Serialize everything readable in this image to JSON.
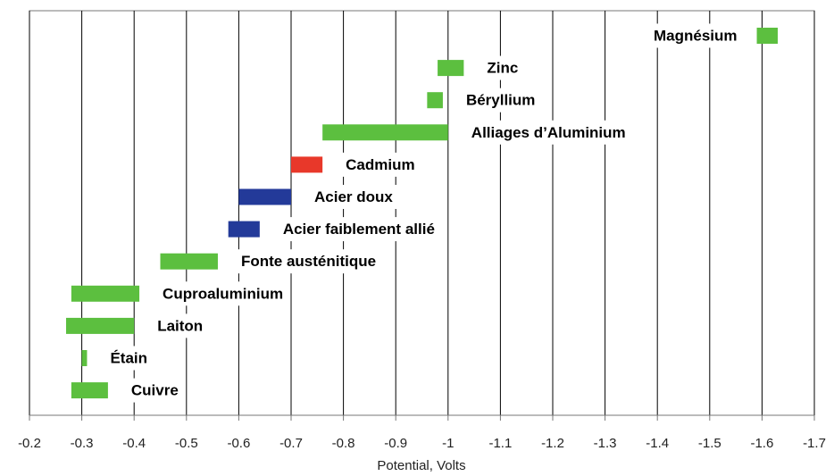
{
  "chart_data": {
    "type": "bar",
    "horizontal": true,
    "x_label": "Potential, Volts",
    "categories": [
      "Magnésium",
      "Zinc",
      "Béryllium",
      "Alliages d’Aluminium",
      "Cadmium",
      "Acier doux",
      "Acier faiblement allié",
      "Fonte austénitique",
      "Cuproaluminium",
      "Laiton",
      "Étain",
      "Cuivre"
    ],
    "starts": [
      -1.59,
      -0.98,
      -0.96,
      -0.76,
      -0.7,
      -0.6,
      -0.58,
      -0.45,
      -0.28,
      -0.27,
      -0.3,
      -0.28
    ],
    "ends": [
      -1.63,
      -1.03,
      -0.99,
      -1.0,
      -0.76,
      -0.7,
      -0.64,
      -0.56,
      -0.41,
      -0.4,
      -0.31,
      -0.35
    ],
    "colors": [
      "#5cbf3f",
      "#5cbf3f",
      "#5cbf3f",
      "#5cbf3f",
      "#e8382a",
      "#233a99",
      "#233a99",
      "#5cbf3f",
      "#5cbf3f",
      "#5cbf3f",
      "#5cbf3f",
      "#5cbf3f"
    ],
    "xlim": [
      -0.2,
      -1.7
    ],
    "xticks": [
      -0.2,
      -0.3,
      -0.4,
      -0.5,
      -0.6,
      -0.7,
      -0.8,
      -0.9,
      -1,
      -1.1,
      -1.2,
      -1.3,
      -1.4,
      -1.5,
      -1.6,
      -1.7
    ],
    "grid": true
  }
}
